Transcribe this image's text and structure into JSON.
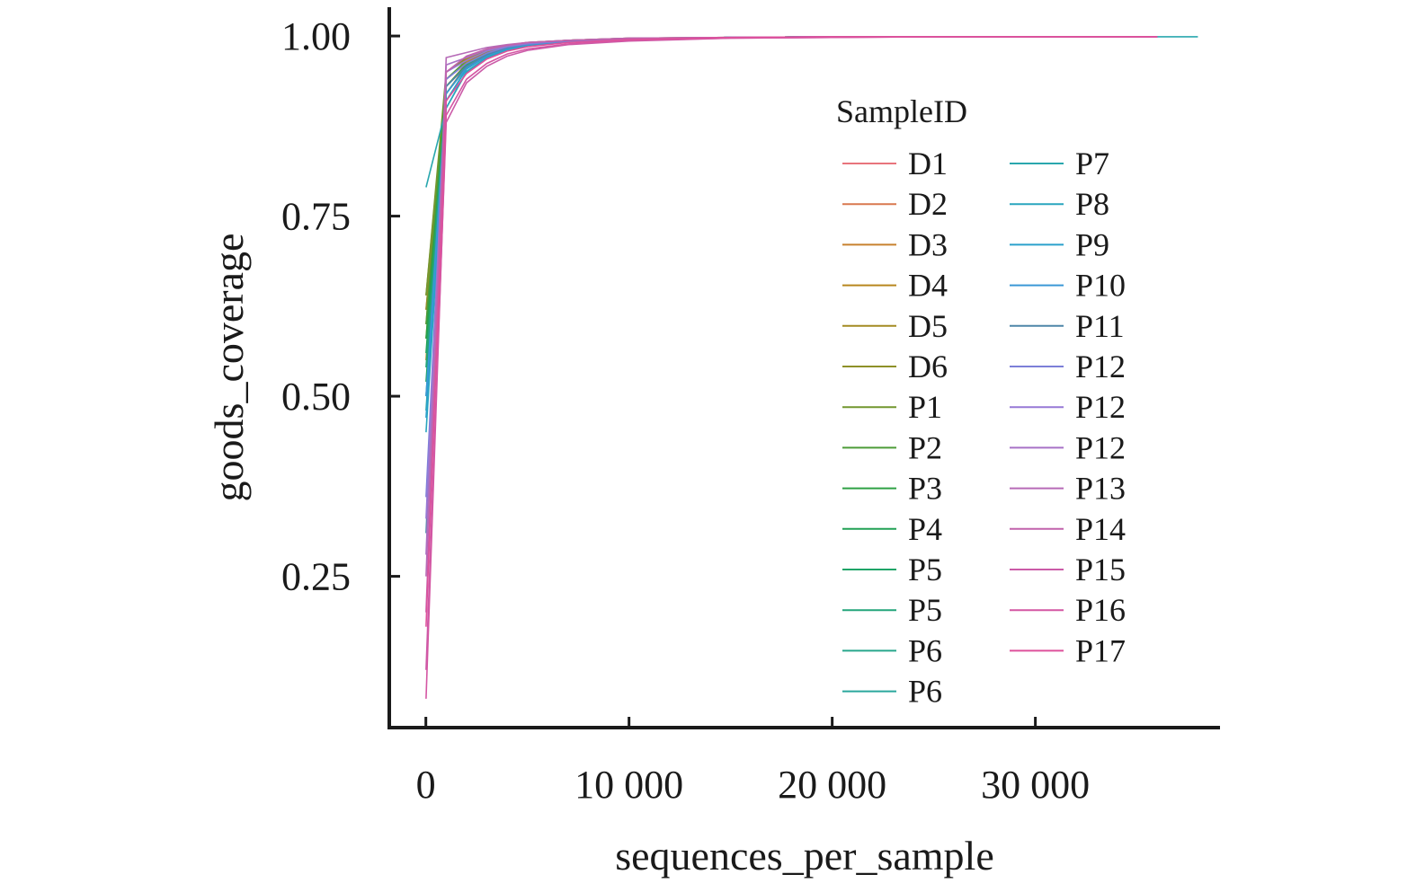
{
  "chart_data": {
    "type": "line",
    "xlabel": "sequences_per_sample",
    "ylabel": "goods_coverage",
    "xlim": [
      -1800,
      39000
    ],
    "ylim": [
      0.04,
      1.04
    ],
    "xticks": [
      0,
      10000,
      20000,
      30000
    ],
    "xtick_labels": [
      "0",
      "10 000",
      "20 000",
      "30 000"
    ],
    "yticks": [
      0.25,
      0.5,
      0.75,
      1.0
    ],
    "ytick_labels": [
      "0.25",
      "0.50",
      "0.75",
      "1.00"
    ],
    "grid": false,
    "legend": {
      "title": "SampleID",
      "placement": "right",
      "columns": 2
    },
    "x": [
      10,
      1000,
      2000,
      3000,
      4000,
      5000,
      7000,
      10000,
      15000,
      20000,
      25000,
      30000,
      36000,
      38000
    ],
    "series": [
      {
        "name": "D1",
        "color": "#E8747C",
        "values": [
          0.62,
          0.92,
          0.96,
          0.975,
          0.983,
          0.988,
          0.993,
          0.996,
          0.998,
          0.999,
          0.999,
          0.999,
          0.999,
          null
        ]
      },
      {
        "name": "D2",
        "color": "#D9784F",
        "values": [
          0.6,
          0.93,
          0.962,
          0.976,
          0.984,
          0.989,
          0.993,
          0.996,
          0.998,
          0.999,
          0.999,
          0.999,
          0.999,
          null
        ]
      },
      {
        "name": "D3",
        "color": "#C8812F",
        "values": [
          0.64,
          0.94,
          0.965,
          0.978,
          0.985,
          0.99,
          0.994,
          0.996,
          0.998,
          0.999,
          0.999,
          0.999,
          0.999,
          null
        ]
      },
      {
        "name": "D4",
        "color": "#B7861E",
        "values": [
          0.55,
          0.95,
          0.968,
          0.98,
          0.986,
          0.99,
          0.994,
          0.997,
          0.998,
          0.999,
          0.999,
          0.999,
          0.999,
          null
        ]
      },
      {
        "name": "D5",
        "color": "#A48B22",
        "values": [
          0.58,
          0.94,
          0.963,
          0.977,
          0.985,
          0.989,
          0.993,
          0.996,
          0.998,
          0.999,
          0.999,
          0.999,
          0.999,
          null
        ]
      },
      {
        "name": "D6",
        "color": "#8E9128",
        "values": [
          0.62,
          0.93,
          0.961,
          0.976,
          0.984,
          0.989,
          0.993,
          0.996,
          0.998,
          0.999,
          0.999,
          0.999,
          0.999,
          null
        ]
      },
      {
        "name": "P1",
        "color": "#72972F",
        "values": [
          0.64,
          0.95,
          0.97,
          0.981,
          0.987,
          0.991,
          0.994,
          0.997,
          0.998,
          0.999,
          0.999,
          0.999,
          0.999,
          null
        ]
      },
      {
        "name": "P2",
        "color": "#4D9C38",
        "values": [
          0.6,
          0.94,
          0.966,
          0.979,
          0.986,
          0.99,
          0.994,
          0.996,
          0.998,
          0.999,
          0.999,
          0.999,
          0.999,
          null
        ]
      },
      {
        "name": "P3",
        "color": "#2FA044",
        "values": [
          0.58,
          0.92,
          0.958,
          0.974,
          0.983,
          0.988,
          0.993,
          0.996,
          0.998,
          0.999,
          0.999,
          0.999,
          0.999,
          null
        ]
      },
      {
        "name": "P4",
        "color": "#21A155",
        "values": [
          0.56,
          0.93,
          0.96,
          0.975,
          0.984,
          0.989,
          0.993,
          0.996,
          0.998,
          0.999,
          0.999,
          0.999,
          0.999,
          null
        ]
      },
      {
        "name": "P5",
        "color": "#1FA467",
        "values": [
          0.52,
          0.92,
          0.957,
          0.973,
          0.983,
          0.988,
          0.993,
          0.996,
          0.998,
          0.999,
          0.999,
          0.999,
          0.999,
          null
        ]
      },
      {
        "name": "P5",
        "color": "#23A57A",
        "values": [
          0.54,
          0.93,
          0.959,
          0.975,
          0.984,
          0.989,
          0.993,
          0.996,
          0.998,
          0.999,
          0.999,
          0.999,
          0.999,
          null
        ]
      },
      {
        "name": "P6",
        "color": "#27A68C",
        "values": [
          0.5,
          0.91,
          0.955,
          0.972,
          0.982,
          0.988,
          0.993,
          0.996,
          0.998,
          0.999,
          0.999,
          0.999,
          0.999,
          null
        ]
      },
      {
        "name": "P6",
        "color": "#2AA79D",
        "values": [
          0.48,
          0.92,
          0.957,
          0.974,
          0.983,
          0.988,
          0.993,
          0.996,
          0.998,
          0.999,
          0.999,
          0.999,
          0.999,
          null
        ]
      },
      {
        "name": "P7",
        "color": "#29A7AE",
        "values": [
          0.79,
          0.9,
          0.95,
          0.97,
          0.98,
          0.987,
          0.992,
          0.996,
          0.998,
          0.999,
          0.999,
          0.999,
          0.999,
          0.999
        ]
      },
      {
        "name": "P8",
        "color": "#29A5BE",
        "values": [
          0.45,
          0.9,
          0.951,
          0.97,
          0.981,
          0.987,
          0.992,
          0.996,
          0.998,
          0.999,
          0.999,
          0.999,
          0.999,
          null
        ]
      },
      {
        "name": "P9",
        "color": "#2AA1CC",
        "values": [
          0.47,
          0.91,
          0.954,
          0.972,
          0.982,
          0.988,
          0.993,
          0.996,
          0.998,
          0.999,
          0.999,
          0.999,
          0.999,
          null
        ]
      },
      {
        "name": "P10",
        "color": "#3A98D6",
        "values": [
          0.5,
          0.92,
          0.956,
          0.973,
          0.983,
          0.988,
          0.993,
          0.996,
          0.998,
          0.999,
          0.999,
          0.999,
          0.999,
          null
        ]
      },
      {
        "name": "P11",
        "color": "#4E86A8",
        "values": [
          0.31,
          0.93,
          0.958,
          0.974,
          0.984,
          0.989,
          0.993,
          0.996,
          0.998,
          0.999,
          0.999,
          0.999,
          0.999,
          null
        ]
      },
      {
        "name": "P12",
        "color": "#7C7FD8",
        "values": [
          0.36,
          0.94,
          0.962,
          0.976,
          0.985,
          0.989,
          0.993,
          0.996,
          0.998,
          0.999,
          0.999,
          0.999,
          0.999,
          null
        ]
      },
      {
        "name": "P12",
        "color": "#9779D6",
        "values": [
          0.33,
          0.95,
          0.966,
          0.979,
          0.986,
          0.99,
          0.994,
          0.996,
          0.998,
          0.999,
          0.999,
          0.999,
          0.999,
          null
        ]
      },
      {
        "name": "P12",
        "color": "#A872C6",
        "values": [
          0.28,
          0.96,
          0.97,
          0.981,
          0.987,
          0.991,
          0.994,
          0.997,
          0.998,
          0.999,
          0.999,
          0.999,
          0.999,
          null
        ]
      },
      {
        "name": "P13",
        "color": "#B66AB7",
        "values": [
          0.25,
          0.97,
          0.977,
          0.984,
          0.988,
          0.991,
          0.994,
          0.997,
          0.998,
          0.999,
          0.999,
          0.999,
          0.999,
          null
        ]
      },
      {
        "name": "P14",
        "color": "#C162AB",
        "values": [
          0.2,
          0.95,
          0.972,
          0.982,
          0.987,
          0.991,
          0.994,
          0.997,
          0.998,
          0.999,
          0.999,
          0.999,
          0.999,
          null
        ]
      },
      {
        "name": "P15",
        "color": "#CB5BA8",
        "values": [
          0.12,
          0.88,
          0.935,
          0.958,
          0.972,
          0.98,
          0.988,
          0.993,
          0.997,
          0.998,
          0.999,
          0.999,
          0.999,
          null
        ]
      },
      {
        "name": "P16",
        "color": "#D456A3",
        "values": [
          0.08,
          0.89,
          0.94,
          0.962,
          0.975,
          0.982,
          0.989,
          0.994,
          0.997,
          0.998,
          0.999,
          0.999,
          0.999,
          null
        ]
      },
      {
        "name": "P17",
        "color": "#DE519B",
        "values": [
          0.18,
          0.91,
          0.948,
          0.968,
          0.979,
          0.985,
          0.991,
          0.995,
          0.998,
          0.999,
          0.999,
          0.999,
          0.999,
          null
        ]
      }
    ]
  }
}
